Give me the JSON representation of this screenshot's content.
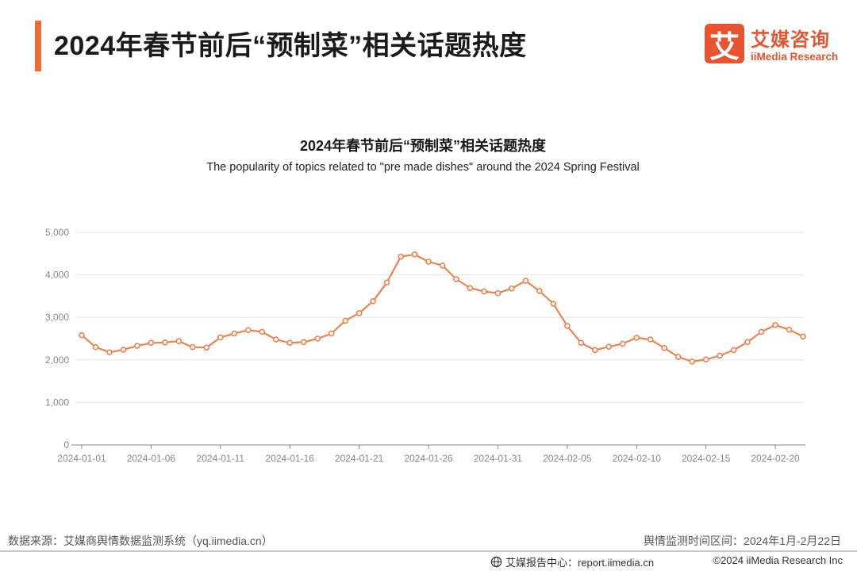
{
  "header": {
    "title": "2024年春节前后“预制菜”相关话题热度"
  },
  "logo": {
    "mark": "艾",
    "name_cn": "艾媒咨询",
    "name_en": "iiMedia Research"
  },
  "chart_data": {
    "type": "line",
    "title": "2024年春节前后“预制菜”相关话题热度",
    "subtitle": "The popularity of topics related to \"pre made dishes\" around the 2024 Spring Festival",
    "xlabel": "",
    "ylabel": "",
    "ylim": [
      0,
      5000
    ],
    "yticks": [
      "0",
      "1,000",
      "2,000",
      "3,000",
      "4,000",
      "5,000"
    ],
    "ytick_values": [
      0,
      1000,
      2000,
      3000,
      4000,
      5000
    ],
    "xtick_labels": [
      "2024-01-01",
      "2024-01-06",
      "2024-01-11",
      "2024-01-16",
      "2024-01-21",
      "2024-01-26",
      "2024-01-31",
      "2024-02-05",
      "2024-02-10",
      "2024-02-15",
      "2024-02-20"
    ],
    "xtick_every": 5,
    "grid": true,
    "color": "#f0834d",
    "series": [
      {
        "name": "热度",
        "values": [
          2580,
          2300,
          2180,
          2240,
          2330,
          2400,
          2410,
          2440,
          2300,
          2290,
          2530,
          2620,
          2700,
          2660,
          2480,
          2400,
          2420,
          2500,
          2620,
          2920,
          3100,
          3380,
          3820,
          4430,
          4480,
          4310,
          4220,
          3900,
          3690,
          3610,
          3570,
          3680,
          3860,
          3620,
          3320,
          2800,
          2400,
          2230,
          2310,
          2380,
          2520,
          2480,
          2280,
          2070,
          1960,
          2010,
          2100,
          2230,
          2420,
          2660,
          2820,
          2710,
          2550
        ]
      }
    ]
  },
  "footer": {
    "source": "数据来源：艾媒商舆情数据监测系统（yq.iimedia.cn）",
    "period": "舆情监测时间区间：2024年1月-2月22日",
    "report_center": "艾媒报告中心：report.iimedia.cn",
    "copyright": "©2024  iiMedia Research  Inc"
  }
}
